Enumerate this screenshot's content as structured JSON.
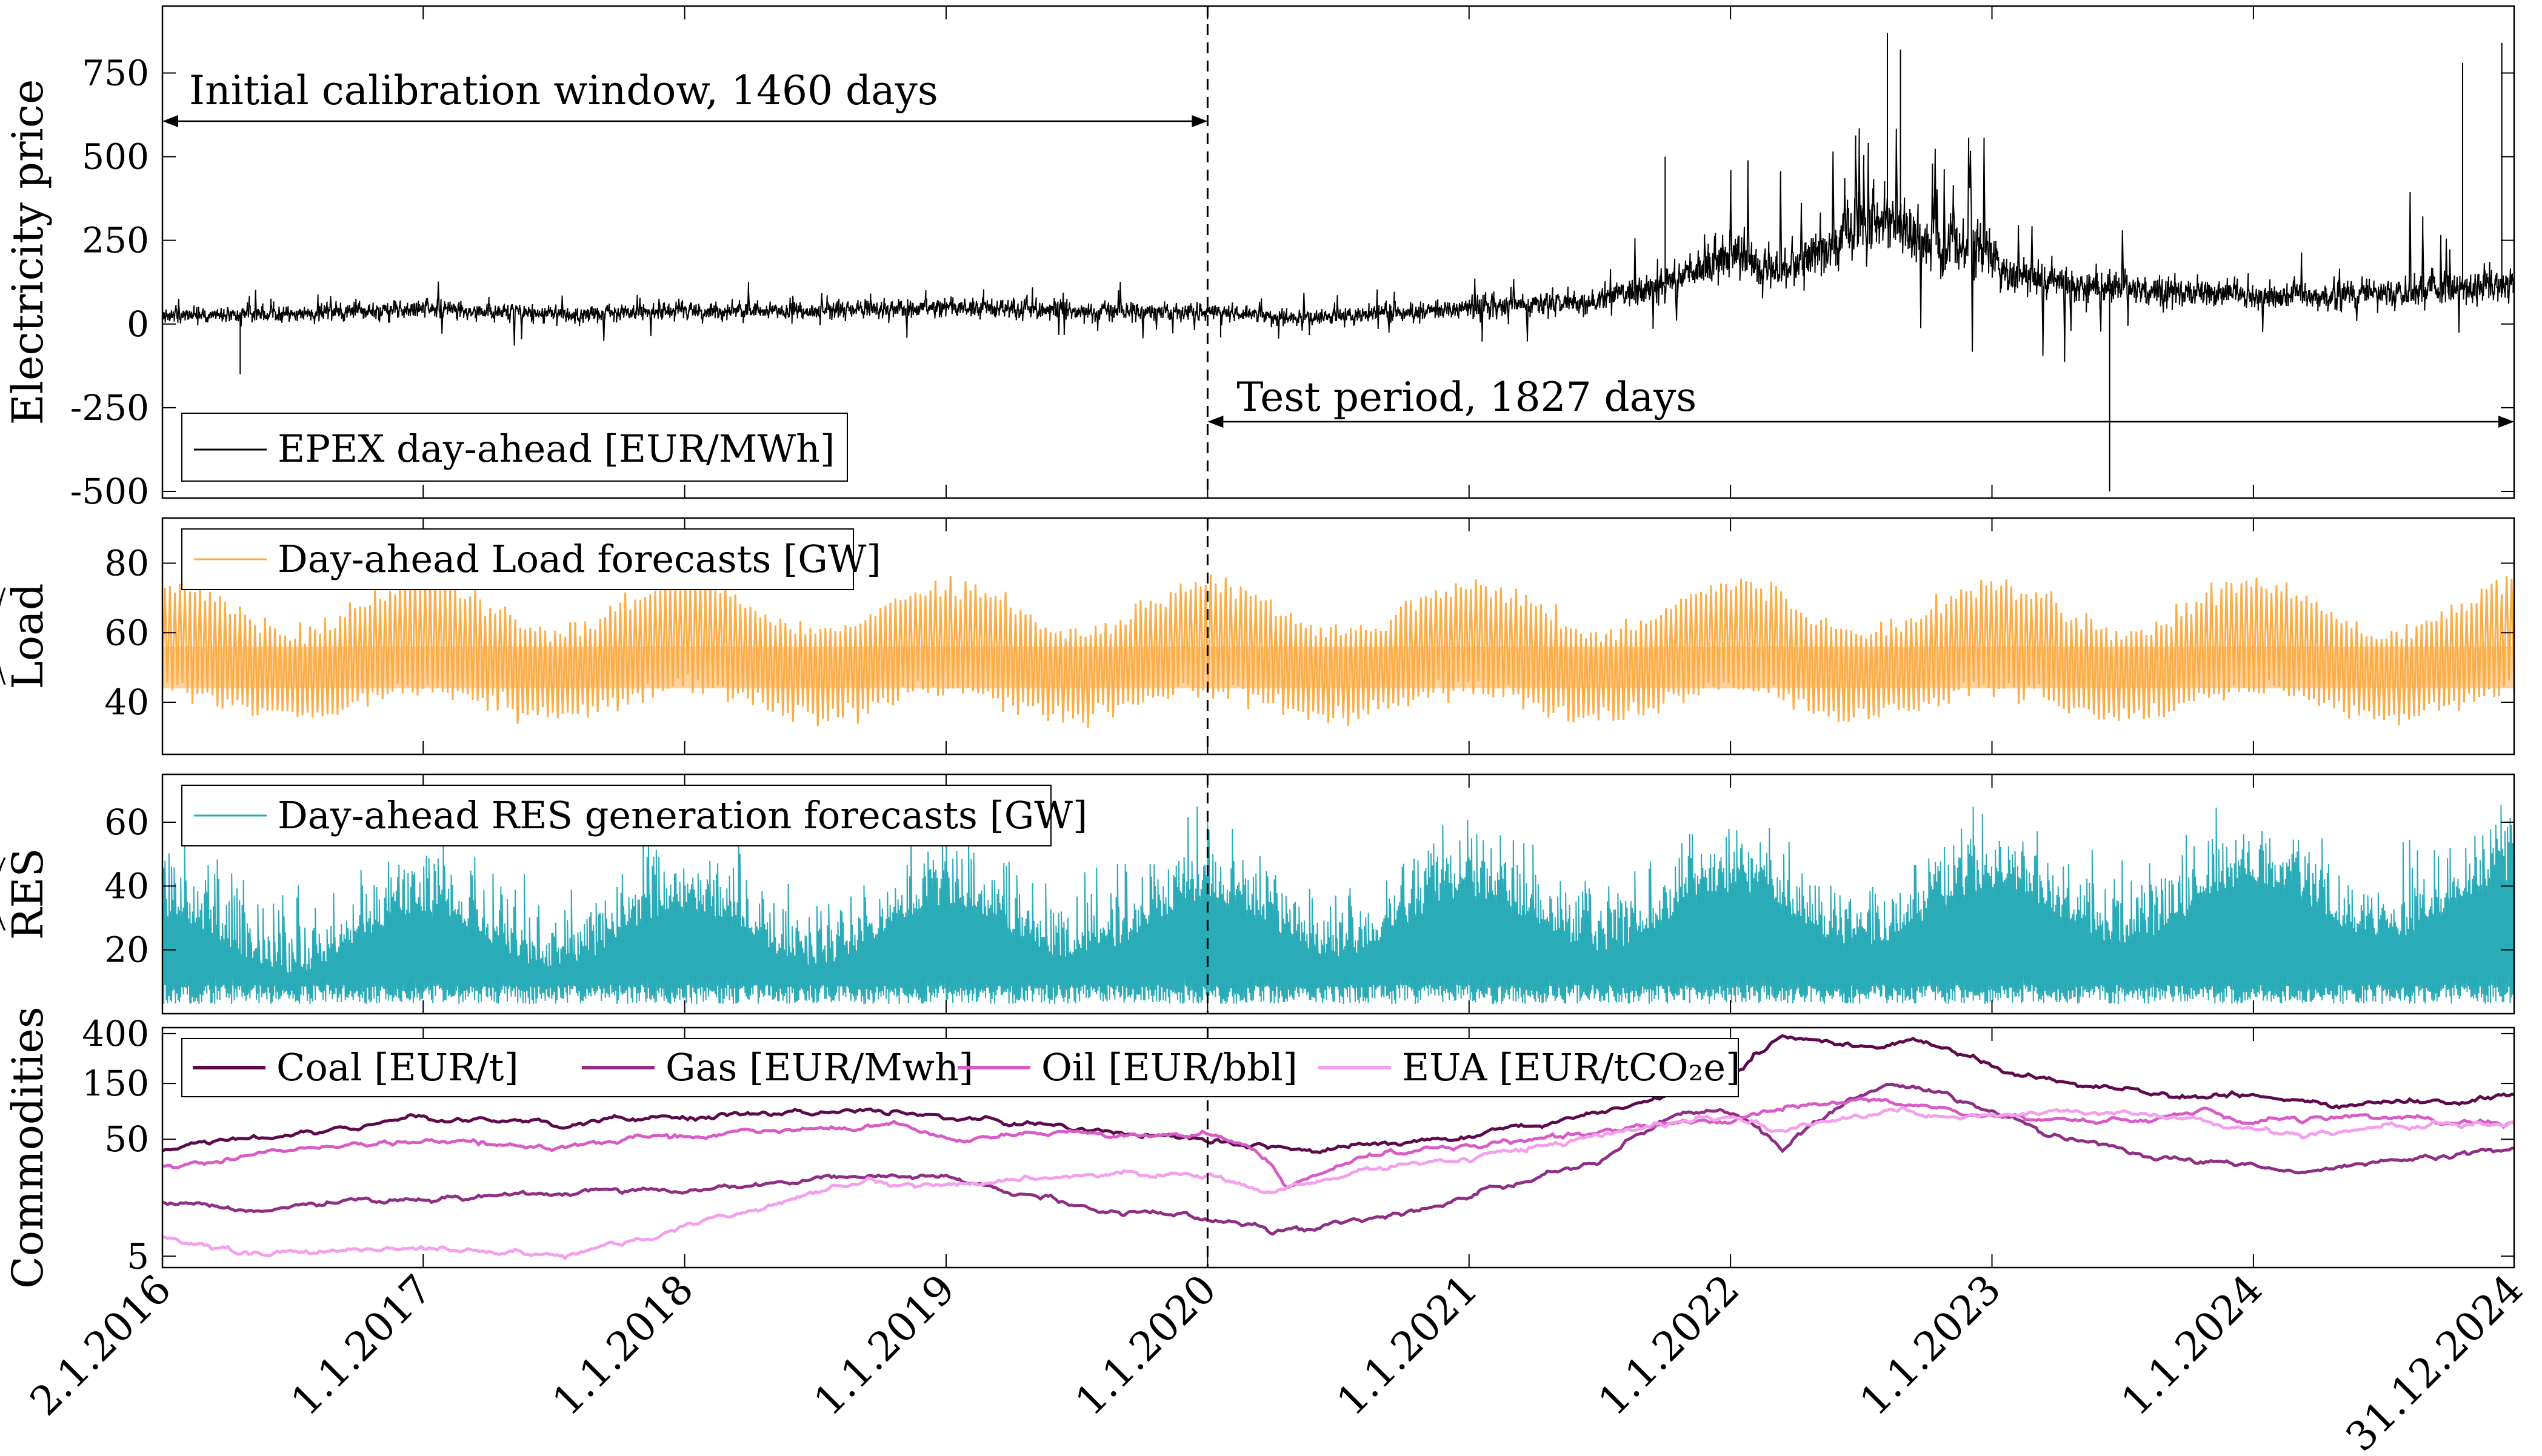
{
  "chart_data": {
    "type": "line",
    "x_tick_labels": [
      "2.1.2016",
      "1.1.2017",
      "1.1.2018",
      "1.1.2019",
      "1.1.2020",
      "1.1.2021",
      "1.1.2022",
      "1.1.2023",
      "1.1.2024",
      "31.12.2024"
    ],
    "split_date": "1.1.2020",
    "panels": [
      {
        "id": "price",
        "ylabel": "Electricity price",
        "ylim": [
          -520,
          950
        ],
        "yticks": [
          -500,
          -250,
          0,
          250,
          500,
          750
        ],
        "series": [
          {
            "name": "EPEX day-ahead [EUR/MWh]",
            "color": "#000000"
          }
        ],
        "envelope_knots": [
          [
            2016.0,
            25
          ],
          [
            2016.5,
            30
          ],
          [
            2017.0,
            45
          ],
          [
            2017.5,
            28
          ],
          [
            2018.0,
            40
          ],
          [
            2018.5,
            38
          ],
          [
            2019.0,
            50
          ],
          [
            2019.5,
            38
          ],
          [
            2020.0,
            35
          ],
          [
            2020.4,
            20
          ],
          [
            2020.8,
            38
          ],
          [
            2021.0,
            48
          ],
          [
            2021.5,
            70
          ],
          [
            2021.8,
            130
          ],
          [
            2022.0,
            200
          ],
          [
            2022.2,
            160
          ],
          [
            2022.6,
            320
          ],
          [
            2022.8,
            200
          ],
          [
            2022.95,
            250
          ],
          [
            2023.05,
            150
          ],
          [
            2023.5,
            100
          ],
          [
            2023.9,
            95
          ],
          [
            2024.0,
            80
          ],
          [
            2024.5,
            90
          ],
          [
            2025.0,
            120
          ]
        ],
        "annotations": [
          {
            "text": "Initial calibration window, 1460 days",
            "from": "2.1.2016",
            "to": "1.1.2020",
            "y": 610
          },
          {
            "text": "Test period, 1827 days",
            "from": "1.1.2020",
            "to": "31.12.2024",
            "y": -600
          }
        ]
      },
      {
        "id": "load",
        "ylabel": "Load",
        "ylabel_hat": true,
        "ylim": [
          25,
          93
        ],
        "yticks": [
          40,
          60,
          80
        ],
        "series": [
          {
            "name": "Day-ahead Load forecasts [GW]",
            "color": "#FDAD48"
          }
        ],
        "weekly_range": {
          "low": [
            36,
            44
          ],
          "high": [
            60,
            74
          ]
        }
      },
      {
        "id": "res",
        "ylabel": "RES",
        "ylabel_hat": true,
        "ylim": [
          0,
          75
        ],
        "yticks": [
          20,
          40,
          60
        ],
        "series": [
          {
            "name": "Day-ahead RES generation forecasts [GW]",
            "color": "#2AABB8"
          }
        ],
        "range": [
          3,
          68
        ]
      },
      {
        "id": "commodities",
        "ylabel": "Commodities",
        "yscale": "log",
        "ylim": [
          4,
          450
        ],
        "yticks": [
          5,
          50,
          150,
          400
        ],
        "series": [
          {
            "name": "Coal [EUR/t]",
            "color": "#5C0A4C",
            "knots": [
              [
                2016.0,
                40
              ],
              [
                2016.5,
                55
              ],
              [
                2017.0,
                75
              ],
              [
                2017.5,
                70
              ],
              [
                2018.0,
                78
              ],
              [
                2018.5,
                85
              ],
              [
                2018.8,
                88
              ],
              [
                2019.2,
                70
              ],
              [
                2019.5,
                60
              ],
              [
                2020.0,
                48
              ],
              [
                2020.4,
                38
              ],
              [
                2020.8,
                48
              ],
              [
                2021.0,
                55
              ],
              [
                2021.4,
                75
              ],
              [
                2021.8,
                120
              ],
              [
                2022.0,
                150
              ],
              [
                2022.2,
                380
              ],
              [
                2022.5,
                300
              ],
              [
                2022.7,
                360
              ],
              [
                2022.9,
                270
              ],
              [
                2023.0,
                210
              ],
              [
                2023.3,
                150
              ],
              [
                2023.6,
                110
              ],
              [
                2024.0,
                115
              ],
              [
                2024.3,
                95
              ],
              [
                2024.7,
                105
              ],
              [
                2025.0,
                115
              ]
            ]
          },
          {
            "name": "Gas [EUR/Mwh]",
            "color": "#8E2F85",
            "knots": [
              [
                2016.0,
                15
              ],
              [
                2016.3,
                12
              ],
              [
                2016.8,
                15
              ],
              [
                2017.3,
                16
              ],
              [
                2017.8,
                18
              ],
              [
                2018.3,
                20
              ],
              [
                2018.8,
                26
              ],
              [
                2019.2,
                20
              ],
              [
                2019.6,
                12
              ],
              [
                2020.0,
                10.5
              ],
              [
                2020.4,
                8
              ],
              [
                2020.8,
                12
              ],
              [
                2021.0,
                16
              ],
              [
                2021.5,
                30
              ],
              [
                2021.8,
                80
              ],
              [
                2022.0,
                90
              ],
              [
                2022.2,
                40
              ],
              [
                2022.4,
                90
              ],
              [
                2022.6,
                150
              ],
              [
                2022.8,
                120
              ],
              [
                2022.95,
                90
              ],
              [
                2023.2,
                55
              ],
              [
                2023.6,
                35
              ],
              [
                2024.0,
                30
              ],
              [
                2024.2,
                26
              ],
              [
                2024.6,
                34
              ],
              [
                2025.0,
                42
              ]
            ]
          },
          {
            "name": "Oil [EUR/bbl]",
            "color": "#D75CC5",
            "knots": [
              [
                2016.0,
                30
              ],
              [
                2016.5,
                40
              ],
              [
                2017.0,
                48
              ],
              [
                2017.5,
                42
              ],
              [
                2018.0,
                55
              ],
              [
                2018.5,
                62
              ],
              [
                2018.8,
                68
              ],
              [
                2019.0,
                50
              ],
              [
                2019.5,
                58
              ],
              [
                2020.0,
                55
              ],
              [
                2020.15,
                45
              ],
              [
                2020.3,
                20
              ],
              [
                2020.6,
                35
              ],
              [
                2021.0,
                45
              ],
              [
                2021.5,
                60
              ],
              [
                2021.8,
                70
              ],
              [
                2022.0,
                72
              ],
              [
                2022.3,
                95
              ],
              [
                2022.5,
                110
              ],
              [
                2022.8,
                90
              ],
              [
                2023.0,
                78
              ],
              [
                2023.5,
                70
              ],
              [
                2023.8,
                85
              ],
              [
                2024.0,
                72
              ],
              [
                2024.5,
                78
              ],
              [
                2024.8,
                70
              ],
              [
                2025.0,
                72
              ]
            ]
          },
          {
            "name": "EUA [EUR/tCO₂e]",
            "color": "#F3A1EC",
            "knots": [
              [
                2016.0,
                7.5
              ],
              [
                2016.3,
                5.2
              ],
              [
                2016.8,
                5.8
              ],
              [
                2017.0,
                6
              ],
              [
                2017.5,
                5
              ],
              [
                2017.9,
                7.5
              ],
              [
                2018.3,
                13
              ],
              [
                2018.7,
                22
              ],
              [
                2019.0,
                20
              ],
              [
                2019.5,
                25
              ],
              [
                2020.0,
                24
              ],
              [
                2020.25,
                17
              ],
              [
                2020.6,
                27
              ],
              [
                2021.0,
                33
              ],
              [
                2021.5,
                52
              ],
              [
                2021.9,
                80
              ],
              [
                2022.0,
                82
              ],
              [
                2022.2,
                60
              ],
              [
                2022.6,
                85
              ],
              [
                2022.9,
                75
              ],
              [
                2023.0,
                80
              ],
              [
                2023.5,
                85
              ],
              [
                2024.0,
                60
              ],
              [
                2024.3,
                55
              ],
              [
                2024.6,
                65
              ],
              [
                2025.0,
                70
              ]
            ]
          }
        ]
      }
    ]
  }
}
